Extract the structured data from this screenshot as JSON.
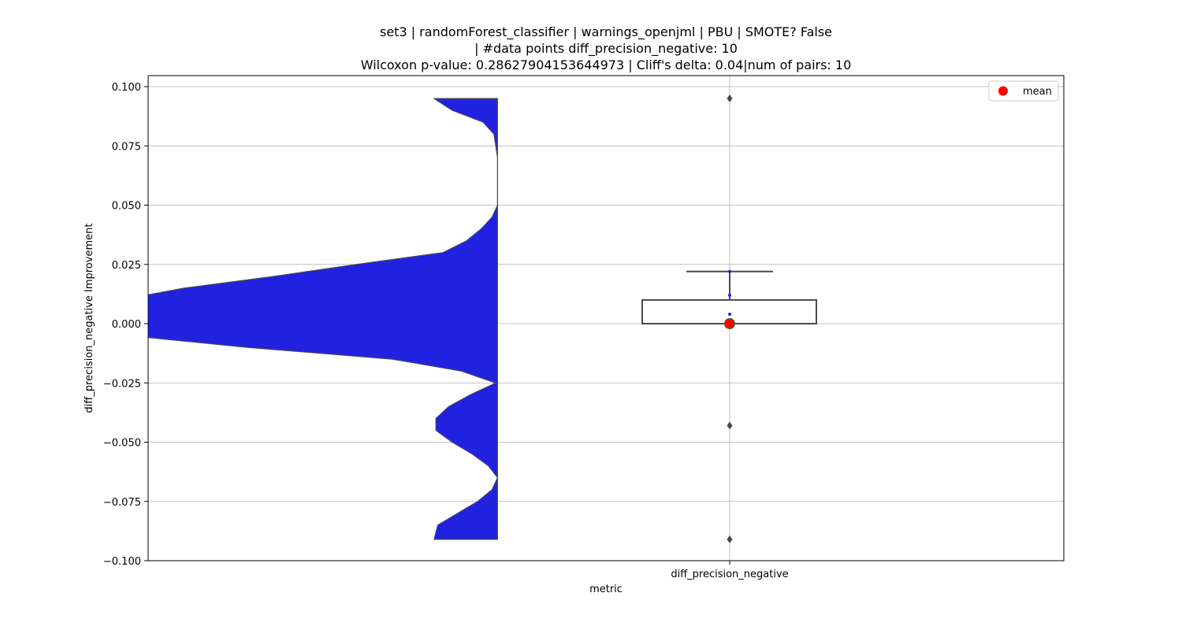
{
  "chart_data": {
    "type": "violin-box",
    "title_lines": [
      "set3 | randomForest_classifier | warnings_openjml | PBU | SMOTE? False",
      "| #data points diff_precision_negative: 10",
      "Wilcoxon p-value: 0.28627904153644973 | Cliff's delta: 0.04|num of pairs: 10"
    ],
    "xlabel": "metric",
    "ylabel": "diff_precision_negative Improvement",
    "category": "diff_precision_negative",
    "ylim": [
      -0.1,
      0.1
    ],
    "yticks": [
      0.1,
      0.075,
      0.05,
      0.025,
      0.0,
      -0.025,
      -0.05,
      -0.075,
      -0.1
    ],
    "ytick_labels": [
      "0.100",
      "0.075",
      "0.050",
      "0.025",
      "0.000",
      "−0.025",
      "−0.050",
      "−0.075",
      "−0.100"
    ],
    "grid": true,
    "legend": {
      "position": "top-right",
      "entries": [
        {
          "label": "mean",
          "marker": "circle",
          "color": "#ff0000"
        }
      ]
    },
    "violin": {
      "color": "#2121e0",
      "side": "left-half",
      "data_range": [
        -0.091,
        0.095
      ],
      "density_profile": [
        [
          0.095,
          0.13
        ],
        [
          0.09,
          0.23
        ],
        [
          0.085,
          0.4
        ],
        [
          0.08,
          0.46
        ],
        [
          0.075,
          0.47
        ],
        [
          0.07,
          0.48
        ],
        [
          0.065,
          0.48
        ],
        [
          0.06,
          0.48
        ],
        [
          0.055,
          0.48
        ],
        [
          0.05,
          0.48
        ],
        [
          0.045,
          0.45
        ],
        [
          0.04,
          0.39
        ],
        [
          0.035,
          0.31
        ],
        [
          0.03,
          0.18
        ],
        [
          0.025,
          -0.3
        ],
        [
          0.02,
          -0.75
        ],
        [
          0.015,
          -1.25
        ],
        [
          0.01,
          -1.6
        ],
        [
          0.005,
          -2.0
        ],
        [
          0.0,
          -2.2
        ],
        [
          -0.005,
          -1.56
        ],
        [
          -0.01,
          -0.9
        ],
        [
          -0.015,
          -0.1
        ],
        [
          -0.02,
          0.28
        ],
        [
          -0.025,
          0.47
        ],
        [
          -0.03,
          0.33
        ],
        [
          -0.035,
          0.21
        ],
        [
          -0.04,
          0.14
        ],
        [
          -0.045,
          0.14
        ],
        [
          -0.05,
          0.23
        ],
        [
          -0.055,
          0.34
        ],
        [
          -0.06,
          0.43
        ],
        [
          -0.065,
          0.48
        ],
        [
          -0.07,
          0.45
        ],
        [
          -0.075,
          0.37
        ],
        [
          -0.08,
          0.26
        ],
        [
          -0.085,
          0.15
        ],
        [
          -0.091,
          0.13
        ]
      ]
    },
    "box": {
      "q1": 0.0,
      "median": 0.0,
      "q3": 0.01,
      "whisker_low": 0.0,
      "whisker_high": 0.022,
      "outliers": [
        0.095,
        -0.043,
        -0.091
      ],
      "edge_color": "#4a4a4a"
    },
    "points": [
      0.022,
      0.012,
      0.004,
      0.0
    ],
    "point_color": "#2121e0",
    "mean": 0.0,
    "mean_color": "#ff0000"
  }
}
